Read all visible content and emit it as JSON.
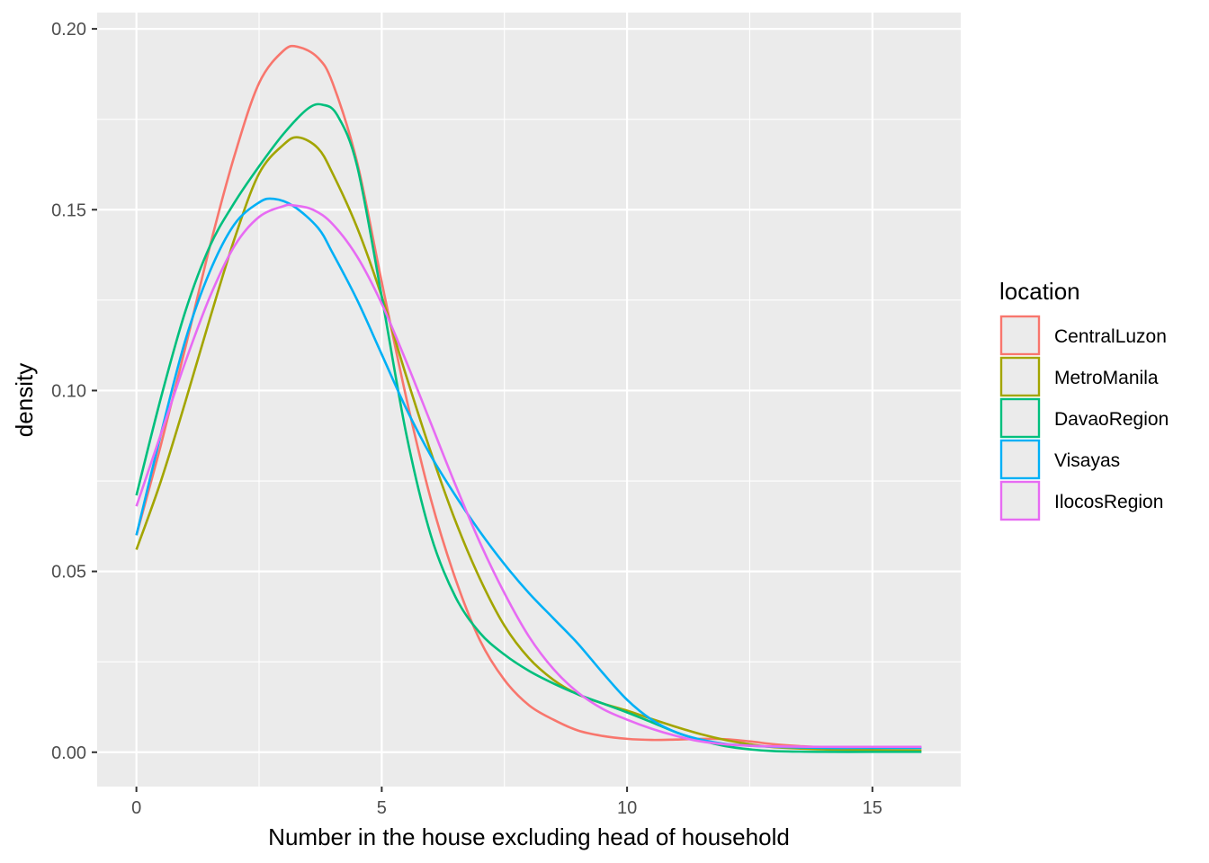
{
  "chart_data": {
    "type": "line",
    "title": "",
    "xlabel": "Number in the house excluding head of household",
    "ylabel": "density",
    "xlim": [
      -0.8,
      16.8
    ],
    "ylim": [
      -0.0095,
      0.2045
    ],
    "x_ticks": [
      0,
      5,
      10,
      15
    ],
    "x_tick_labels": [
      "0",
      "5",
      "10",
      "15"
    ],
    "y_ticks": [
      0,
      0.05,
      0.1,
      0.15,
      0.2
    ],
    "y_tick_labels": [
      "0.00",
      "0.05",
      "0.10",
      "0.15",
      "0.20"
    ],
    "grid": true,
    "panel_background": "#ebebeb",
    "legend": {
      "title": "location",
      "position": "right"
    },
    "series": [
      {
        "name": "CentralLuzon",
        "color": "#F8766D",
        "points": [
          [
            0,
            0.06
          ],
          [
            0.5,
            0.085
          ],
          [
            1,
            0.112
          ],
          [
            1.5,
            0.14
          ],
          [
            2,
            0.165
          ],
          [
            2.5,
            0.185
          ],
          [
            3,
            0.194
          ],
          [
            3.3,
            0.195
          ],
          [
            3.7,
            0.192
          ],
          [
            4,
            0.185
          ],
          [
            4.5,
            0.163
          ],
          [
            5,
            0.13
          ],
          [
            5.5,
            0.098
          ],
          [
            6,
            0.07
          ],
          [
            6.5,
            0.048
          ],
          [
            7,
            0.031
          ],
          [
            7.5,
            0.02
          ],
          [
            8,
            0.013
          ],
          [
            8.5,
            0.009
          ],
          [
            9,
            0.006
          ],
          [
            9.5,
            0.0045
          ],
          [
            10,
            0.0037
          ],
          [
            10.5,
            0.0034
          ],
          [
            11,
            0.0035
          ],
          [
            11.5,
            0.0037
          ],
          [
            12,
            0.0036
          ],
          [
            12.5,
            0.003
          ],
          [
            13,
            0.0022
          ],
          [
            13.5,
            0.0017
          ],
          [
            14,
            0.0014
          ],
          [
            15,
            0.0013
          ],
          [
            16,
            0.0013
          ]
        ]
      },
      {
        "name": "MetroManila",
        "color": "#A3A500",
        "points": [
          [
            0,
            0.056
          ],
          [
            0.5,
            0.075
          ],
          [
            1,
            0.097
          ],
          [
            1.5,
            0.12
          ],
          [
            2,
            0.142
          ],
          [
            2.5,
            0.16
          ],
          [
            3,
            0.168
          ],
          [
            3.3,
            0.17
          ],
          [
            3.7,
            0.167
          ],
          [
            4,
            0.16
          ],
          [
            4.5,
            0.145
          ],
          [
            5,
            0.126
          ],
          [
            5.5,
            0.104
          ],
          [
            6,
            0.083
          ],
          [
            6.5,
            0.064
          ],
          [
            7,
            0.048
          ],
          [
            7.5,
            0.035
          ],
          [
            8,
            0.026
          ],
          [
            8.5,
            0.02
          ],
          [
            9,
            0.016
          ],
          [
            9.5,
            0.0135
          ],
          [
            10,
            0.0115
          ],
          [
            10.5,
            0.0092
          ],
          [
            11,
            0.007
          ],
          [
            11.5,
            0.005
          ],
          [
            12,
            0.0034
          ],
          [
            12.5,
            0.0022
          ],
          [
            13,
            0.0014
          ],
          [
            14,
            0.0008
          ],
          [
            15,
            0.0006
          ],
          [
            16,
            0.0005
          ]
        ]
      },
      {
        "name": "DavaoRegion",
        "color": "#00BF7D",
        "points": [
          [
            0,
            0.071
          ],
          [
            0.5,
            0.098
          ],
          [
            1,
            0.122
          ],
          [
            1.5,
            0.14
          ],
          [
            2,
            0.152
          ],
          [
            2.5,
            0.162
          ],
          [
            3,
            0.171
          ],
          [
            3.5,
            0.178
          ],
          [
            3.8,
            0.179
          ],
          [
            4.1,
            0.176
          ],
          [
            4.5,
            0.162
          ],
          [
            5,
            0.126
          ],
          [
            5.5,
            0.088
          ],
          [
            6,
            0.06
          ],
          [
            6.5,
            0.043
          ],
          [
            7,
            0.033
          ],
          [
            7.5,
            0.027
          ],
          [
            8,
            0.0225
          ],
          [
            8.5,
            0.019
          ],
          [
            9,
            0.016
          ],
          [
            9.5,
            0.0135
          ],
          [
            10,
            0.011
          ],
          [
            10.5,
            0.0083
          ],
          [
            11,
            0.0055
          ],
          [
            11.5,
            0.0033
          ],
          [
            12,
            0.0017
          ],
          [
            12.5,
            0.0008
          ],
          [
            13,
            0.0003
          ],
          [
            14,
            0.0001
          ],
          [
            15,
            0.0001
          ],
          [
            16,
            0.0001
          ]
        ]
      },
      {
        "name": "Visayas",
        "color": "#00B0F6",
        "points": [
          [
            0,
            0.06
          ],
          [
            0.5,
            0.088
          ],
          [
            1,
            0.114
          ],
          [
            1.5,
            0.133
          ],
          [
            2,
            0.146
          ],
          [
            2.5,
            0.152
          ],
          [
            2.8,
            0.153
          ],
          [
            3.2,
            0.151
          ],
          [
            3.7,
            0.145
          ],
          [
            4,
            0.138
          ],
          [
            4.5,
            0.125
          ],
          [
            5,
            0.11
          ],
          [
            5.5,
            0.095
          ],
          [
            6,
            0.082
          ],
          [
            6.5,
            0.071
          ],
          [
            7,
            0.061
          ],
          [
            7.5,
            0.052
          ],
          [
            8,
            0.044
          ],
          [
            8.5,
            0.037
          ],
          [
            9,
            0.03
          ],
          [
            9.5,
            0.022
          ],
          [
            10,
            0.0145
          ],
          [
            10.5,
            0.009
          ],
          [
            11,
            0.0055
          ],
          [
            11.5,
            0.0035
          ],
          [
            12,
            0.0023
          ],
          [
            12.5,
            0.0018
          ],
          [
            13,
            0.0015
          ],
          [
            14,
            0.0012
          ],
          [
            15,
            0.0012
          ],
          [
            16,
            0.0012
          ]
        ]
      },
      {
        "name": "IlocosRegion",
        "color": "#E76BF3",
        "points": [
          [
            0,
            0.068
          ],
          [
            0.5,
            0.088
          ],
          [
            1,
            0.108
          ],
          [
            1.5,
            0.126
          ],
          [
            2,
            0.14
          ],
          [
            2.5,
            0.148
          ],
          [
            3,
            0.151
          ],
          [
            3.2,
            0.1512
          ],
          [
            3.6,
            0.15
          ],
          [
            4,
            0.146
          ],
          [
            4.5,
            0.137
          ],
          [
            5,
            0.124
          ],
          [
            5.5,
            0.108
          ],
          [
            6,
            0.091
          ],
          [
            6.5,
            0.074
          ],
          [
            7,
            0.058
          ],
          [
            7.5,
            0.044
          ],
          [
            8,
            0.032
          ],
          [
            8.5,
            0.023
          ],
          [
            9,
            0.0165
          ],
          [
            9.5,
            0.012
          ],
          [
            10,
            0.009
          ],
          [
            10.5,
            0.0065
          ],
          [
            11,
            0.0045
          ],
          [
            11.5,
            0.003
          ],
          [
            12,
            0.0022
          ],
          [
            12.5,
            0.0018
          ],
          [
            13,
            0.0016
          ],
          [
            14,
            0.0015
          ],
          [
            15,
            0.0015
          ],
          [
            16,
            0.0015
          ]
        ]
      }
    ]
  }
}
